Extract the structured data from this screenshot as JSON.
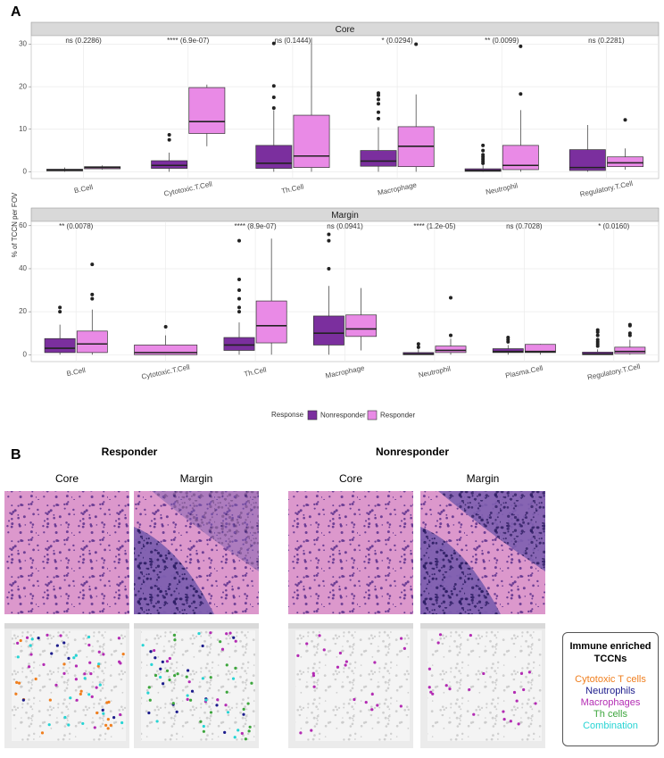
{
  "panel_labels": [
    "A",
    "B"
  ],
  "y_label": "% of TCCN per FOV",
  "legend": {
    "title": "Response"
  },
  "chart_data": [
    {
      "type": "box",
      "title": "Core",
      "categories": [
        "B.Cell",
        "Cytotoxic.T.Cell",
        "Th.Cell",
        "Macrophage",
        "Neutrophil",
        "Regulatory.T.Cell"
      ],
      "annotations": [
        "ns (0.2286)",
        "**** (6.9e-07)",
        "ns (0.1444)",
        "* (0.0294)",
        "** (0.0099)",
        "ns (0.2281)"
      ],
      "ylim": [
        -1.6,
        32
      ],
      "yticks": [
        0,
        10,
        20,
        30
      ],
      "grid": true,
      "series": [
        {
          "name": "Nonresponder",
          "color": "#7b2f9e",
          "boxes": [
            {
              "low": 0,
              "q1": 0.2,
              "median": 0.4,
              "q3": 0.6,
              "high": 1,
              "outliers": []
            },
            {
              "low": 0,
              "q1": 0.8,
              "median": 1.5,
              "q3": 2.6,
              "high": 4.5,
              "outliers": [
                7.5,
                8.7
              ]
            },
            {
              "low": 0,
              "q1": 0.8,
              "median": 2,
              "q3": 6.2,
              "high": 14.5,
              "outliers": [
                15,
                17.5,
                20.2,
                30.2
              ]
            },
            {
              "low": 0,
              "q1": 1.3,
              "median": 2.5,
              "q3": 5,
              "high": 10.5,
              "outliers": [
                12.5,
                14,
                16,
                17,
                18,
                18.5
              ]
            },
            {
              "low": 0,
              "q1": 0.1,
              "median": 0.3,
              "q3": 0.7,
              "high": 1.5,
              "outliers": [
                2,
                2.5,
                3,
                3.5,
                4,
                5,
                6.2
              ]
            },
            {
              "low": 0,
              "q1": 0.3,
              "median": 1,
              "q3": 5.2,
              "high": 11,
              "outliers": []
            }
          ]
        },
        {
          "name": "Responder",
          "color": "#e98ae6",
          "boxes": [
            {
              "low": 0.5,
              "q1": 0.7,
              "median": 1,
              "q3": 1.2,
              "high": 1.5,
              "outliers": []
            },
            {
              "low": 6,
              "q1": 9,
              "median": 11.8,
              "q3": 19.8,
              "high": 20.5,
              "outliers": []
            },
            {
              "low": 0,
              "q1": 1,
              "median": 3.7,
              "q3": 13.3,
              "high": 31.5,
              "outliers": []
            },
            {
              "low": 0,
              "q1": 1.2,
              "median": 6,
              "q3": 10.6,
              "high": 18.2,
              "outliers": [
                30
              ]
            },
            {
              "low": 0,
              "q1": 0.5,
              "median": 1.5,
              "q3": 6.2,
              "high": 14.5,
              "outliers": [
                18.3,
                29.5
              ]
            },
            {
              "low": 0.5,
              "q1": 1.2,
              "median": 2.1,
              "q3": 3.5,
              "high": 5.5,
              "outliers": [
                12.2
              ]
            }
          ]
        }
      ]
    },
    {
      "type": "box",
      "title": "Margin",
      "categories": [
        "B.Cell",
        "Cytotoxic.T.Cell",
        "Th.Cell",
        "Macrophage",
        "Neutrophil",
        "Plasma.Cell",
        "Regulatory.T.Cell"
      ],
      "annotations": [
        "** (0.0078)",
        null,
        "**** (8.9e-07)",
        "ns (0.0941)",
        "**** (1.2e-05)",
        "ns (0.7028)",
        "* (0.0160)"
      ],
      "ylim": [
        -3.2,
        62
      ],
      "yticks": [
        0,
        20,
        40,
        60
      ],
      "grid": true,
      "series": [
        {
          "name": "Nonresponder",
          "color": "#7b2f9e",
          "boxes": [
            {
              "low": 0,
              "q1": 1,
              "median": 3,
              "q3": 7.5,
              "high": 14,
              "outliers": [
                20,
                22
              ]
            },
            null,
            {
              "low": 0,
              "q1": 2,
              "median": 4.5,
              "q3": 8,
              "high": 15,
              "outliers": [
                20,
                22,
                26,
                30,
                35,
                53
              ]
            },
            {
              "low": 0,
              "q1": 4.5,
              "median": 10,
              "q3": 18,
              "high": 32,
              "outliers": [
                40,
                53,
                56
              ]
            },
            {
              "low": 0,
              "q1": 0,
              "median": 0.3,
              "q3": 1,
              "high": 2.5,
              "outliers": [
                3.5,
                5
              ]
            },
            {
              "low": 0,
              "q1": 1,
              "median": 1.5,
              "q3": 2.8,
              "high": 4.5,
              "outliers": [
                6,
                7,
                8
              ]
            },
            {
              "low": 0,
              "q1": 0,
              "median": 0.3,
              "q3": 1.2,
              "high": 2.5,
              "outliers": [
                4,
                5,
                6,
                7,
                9,
                10.5,
                11.5
              ]
            }
          ]
        },
        {
          "name": "Responder",
          "color": "#e98ae6",
          "boxes": [
            {
              "low": 0,
              "q1": 1,
              "median": 5,
              "q3": 11,
              "high": 21,
              "outliers": [
                26,
                28,
                42
              ]
            },
            {
              "low": 0,
              "q1": 0,
              "median": 1,
              "q3": 4.5,
              "high": 9,
              "outliers": [
                13
              ]
            },
            {
              "low": 0,
              "q1": 5.5,
              "median": 13.5,
              "q3": 25,
              "high": 54,
              "outliers": []
            },
            {
              "low": 2,
              "q1": 8.5,
              "median": 12,
              "q3": 18.5,
              "high": 31,
              "outliers": []
            },
            {
              "low": 0,
              "q1": 1,
              "median": 2,
              "q3": 4,
              "high": 7.5,
              "outliers": [
                9,
                26.5
              ]
            },
            {
              "low": 0,
              "q1": 1,
              "median": 1.5,
              "q3": 4.8,
              "high": 5,
              "outliers": []
            },
            {
              "low": 0,
              "q1": 0.5,
              "median": 1.5,
              "q3": 3.5,
              "high": 7,
              "outliers": [
                9,
                10,
                13.5,
                14
              ]
            }
          ]
        }
      ]
    }
  ],
  "panel_b": {
    "groups": [
      {
        "title": "Responder",
        "views": [
          "Core",
          "Margin"
        ]
      },
      {
        "title": "Nonresponder",
        "views": [
          "Core",
          "Margin"
        ]
      }
    ],
    "legend": {
      "title": "Immune enriched TCCNs",
      "items": [
        {
          "label": "Cytotoxic T cells",
          "color": "#f07f1f"
        },
        {
          "label": "Neutrophils",
          "color": "#1c1c8c"
        },
        {
          "label": "Macrophages",
          "color": "#b32bb3"
        },
        {
          "label": "Th cells",
          "color": "#3da63d"
        },
        {
          "label": "Combination",
          "color": "#27d4d4"
        }
      ]
    }
  }
}
